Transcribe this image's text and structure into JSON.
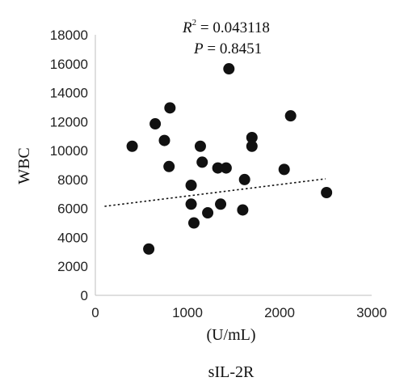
{
  "chart_data": {
    "type": "scatter",
    "title": "",
    "xlabel": "(U/mL)",
    "xlabel2": "sIL-2R",
    "ylabel": "WBC",
    "xlim": [
      0,
      3000
    ],
    "ylim": [
      0,
      18000
    ],
    "x_ticks": [
      0,
      1000,
      2000,
      3000
    ],
    "y_ticks": [
      0,
      2000,
      4000,
      6000,
      8000,
      10000,
      12000,
      14000,
      16000,
      18000
    ],
    "grid": false,
    "annotations": {
      "r2_symbol": "R",
      "r2_sup": "2",
      "r2_value": " = 0.043118",
      "p_symbol": "P",
      "p_value": " = 0.8451"
    },
    "trendline": {
      "style": "dotted",
      "x": [
        100,
        2500
      ],
      "y": [
        6150,
        8050
      ]
    },
    "series": [
      {
        "marker_color": "#111111",
        "points": [
          {
            "x": 400,
            "y": 10300
          },
          {
            "x": 580,
            "y": 3200
          },
          {
            "x": 650,
            "y": 11850
          },
          {
            "x": 750,
            "y": 10700
          },
          {
            "x": 800,
            "y": 8900
          },
          {
            "x": 810,
            "y": 12950
          },
          {
            "x": 1040,
            "y": 7600
          },
          {
            "x": 1040,
            "y": 6300
          },
          {
            "x": 1070,
            "y": 5000
          },
          {
            "x": 1140,
            "y": 10300
          },
          {
            "x": 1160,
            "y": 9200
          },
          {
            "x": 1220,
            "y": 5700
          },
          {
            "x": 1330,
            "y": 8800
          },
          {
            "x": 1360,
            "y": 6300
          },
          {
            "x": 1420,
            "y": 8800
          },
          {
            "x": 1450,
            "y": 15650
          },
          {
            "x": 1600,
            "y": 5900
          },
          {
            "x": 1620,
            "y": 8000
          },
          {
            "x": 1700,
            "y": 10900
          },
          {
            "x": 1700,
            "y": 10300
          },
          {
            "x": 2050,
            "y": 8700
          },
          {
            "x": 2120,
            "y": 12400
          },
          {
            "x": 2510,
            "y": 7100
          }
        ]
      }
    ]
  }
}
